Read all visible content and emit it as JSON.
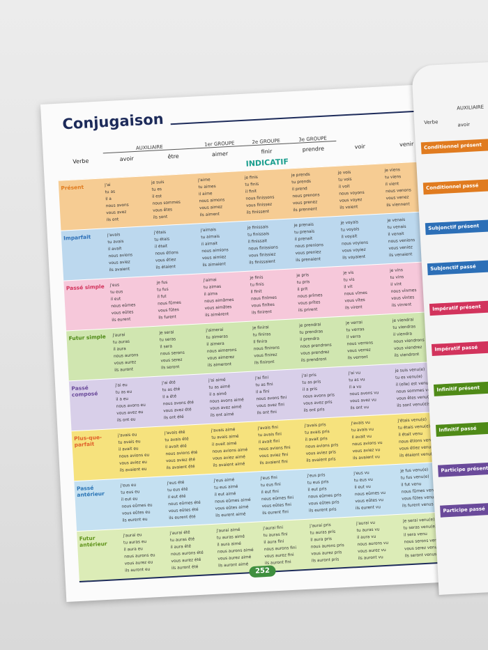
{
  "header": {
    "title": "Conjugaison",
    "groups": [
      "AUXILIAIRE",
      "1er GROUPE",
      "2e GROUPE",
      "3e GROUPE"
    ],
    "verb_label": "Verbe",
    "verbs": [
      "avoir",
      "être",
      "aimer",
      "finir",
      "prendre",
      "voir",
      "venir"
    ],
    "mood": "INDICATIF"
  },
  "tenses": [
    {
      "name": "Présent",
      "cells": [
        [
          "j'ai",
          "tu as",
          "il a",
          "nous avons",
          "vous avez",
          "ils ont"
        ],
        [
          "je suis",
          "tu es",
          "il est",
          "nous sommes",
          "vous êtes",
          "ils sont"
        ],
        [
          "j'aime",
          "tu aimes",
          "il aime",
          "nous aimons",
          "vous aimez",
          "ils aiment"
        ],
        [
          "je finis",
          "tu finis",
          "il finit",
          "nous finissons",
          "vous finissez",
          "ils finissent"
        ],
        [
          "je prends",
          "tu prends",
          "il prend",
          "nous prenons",
          "vous prenez",
          "ils prennent"
        ],
        [
          "je vois",
          "tu vois",
          "il voit",
          "nous voyons",
          "vous voyez",
          "ils voient"
        ],
        [
          "je viens",
          "tu viens",
          "il vient",
          "nous venons",
          "vous venez",
          "ils viennent"
        ]
      ]
    },
    {
      "name": "Imparfait",
      "cells": [
        [
          "j'avais",
          "tu avais",
          "il avait",
          "nous avions",
          "vous aviez",
          "ils avaient"
        ],
        [
          "j'étais",
          "tu étais",
          "il était",
          "nous étions",
          "vous étiez",
          "ils étaient"
        ],
        [
          "j'aimais",
          "tu aimais",
          "il aimait",
          "nous aimions",
          "vous aimiez",
          "ils aimaient"
        ],
        [
          "je finissais",
          "tu finissais",
          "il finissait",
          "nous finissions",
          "vous finissiez",
          "ils finissaient"
        ],
        [
          "je prenais",
          "tu prenais",
          "il prenait",
          "nous prenions",
          "vous preniez",
          "ils prenaient"
        ],
        [
          "je voyais",
          "tu voyais",
          "il voyait",
          "nous voyions",
          "vous voyiez",
          "ils voyaient"
        ],
        [
          "je venais",
          "tu venais",
          "il venait",
          "nous venions",
          "vous veniez",
          "ils venaient"
        ]
      ]
    },
    {
      "name": "Passé simple",
      "cells": [
        [
          "j'eus",
          "tu eus",
          "il eut",
          "nous eûmes",
          "vous eûtes",
          "ils eurent"
        ],
        [
          "je fus",
          "tu fus",
          "il fut",
          "nous fûmes",
          "vous fûtes",
          "ils furent"
        ],
        [
          "j'aimai",
          "tu aimas",
          "il aima",
          "nous aimâmes",
          "vous aimâtes",
          "ils aimèrent"
        ],
        [
          "je finis",
          "tu finis",
          "il finit",
          "nous finîmes",
          "vous finîtes",
          "ils finirent"
        ],
        [
          "je pris",
          "tu pris",
          "il prit",
          "nous prîmes",
          "vous prîtes",
          "ils prirent"
        ],
        [
          "je vis",
          "tu vis",
          "il vit",
          "nous vîmes",
          "vous vîtes",
          "ils virent"
        ],
        [
          "je vins",
          "tu vins",
          "il vint",
          "nous vînmes",
          "vous vîntes",
          "ils vinrent"
        ]
      ]
    },
    {
      "name": "Futur simple",
      "cells": [
        [
          "j'aurai",
          "tu auras",
          "il aura",
          "nous aurons",
          "vous aurez",
          "ils auront"
        ],
        [
          "je serai",
          "tu seras",
          "il sera",
          "nous serons",
          "vous serez",
          "ils seront"
        ],
        [
          "j'aimerai",
          "tu aimeras",
          "il aimera",
          "nous aimerons",
          "vous aimerez",
          "ils aimeront"
        ],
        [
          "je finirai",
          "tu finiras",
          "il finira",
          "nous finirons",
          "vous finirez",
          "ils finiront"
        ],
        [
          "je prendrai",
          "tu prendras",
          "il prendra",
          "nous prendrons",
          "vous prendrez",
          "ils prendront"
        ],
        [
          "je verrai",
          "tu verras",
          "il verra",
          "nous verrons",
          "vous verrez",
          "ils verront"
        ],
        [
          "je viendrai",
          "tu viendras",
          "il viendra",
          "nous viendrons",
          "vous viendrez",
          "ils viendront"
        ]
      ]
    },
    {
      "name": "Passé composé",
      "cells": [
        [
          "j'ai eu",
          "tu as eu",
          "il a eu",
          "nous avons eu",
          "vous avez eu",
          "ils ont eu"
        ],
        [
          "j'ai été",
          "tu as été",
          "il a été",
          "nous avons été",
          "vous avez été",
          "ils ont été"
        ],
        [
          "j'ai aimé",
          "tu as aimé",
          "il a aimé",
          "nous avons aimé",
          "vous avez aimé",
          "ils ont aimé"
        ],
        [
          "j'ai fini",
          "tu as fini",
          "il a fini",
          "nous avons fini",
          "vous avez fini",
          "ils ont fini"
        ],
        [
          "j'ai pris",
          "tu as pris",
          "il a pris",
          "nous avons pris",
          "vous avez pris",
          "ils ont pris"
        ],
        [
          "j'ai vu",
          "tu as vu",
          "il a vu",
          "nous avons vu",
          "vous avez vu",
          "ils ont vu"
        ],
        [
          "je suis venu(e)",
          "tu es venu(e)",
          "il (elle) est venu(e)",
          "nous sommes venu(e)s",
          "vous êtes venu(e)s",
          "ils sont venu(e)s"
        ]
      ]
    },
    {
      "name": "Plus-que-parfait",
      "cells": [
        [
          "j'avais eu",
          "tu avais eu",
          "il avait eu",
          "nous avions eu",
          "vous aviez eu",
          "ils avaient eu"
        ],
        [
          "j'avais été",
          "tu avais été",
          "il avait été",
          "nous avions été",
          "vous aviez été",
          "ils avaient été"
        ],
        [
          "j'avais aimé",
          "tu avais aimé",
          "il avait aimé",
          "nous avions aimé",
          "vous aviez aimé",
          "ils avaient aimé"
        ],
        [
          "j'avais fini",
          "tu avais fini",
          "il avait fini",
          "nous avions fini",
          "vous aviez fini",
          "ils avaient fini"
        ],
        [
          "j'avais pris",
          "tu avais pris",
          "il avait pris",
          "nous avions pris",
          "vous aviez pris",
          "ils avaient pris"
        ],
        [
          "j'avais vu",
          "tu avais vu",
          "il avait vu",
          "nous avions vu",
          "vous aviez vu",
          "ils avaient vu"
        ],
        [
          "j'étais venu(e)",
          "tu étais venu(e)",
          "il était venu",
          "nous étions venu(e)s",
          "vous étiez venu(e)s",
          "ils étaient venu(e)s"
        ]
      ]
    },
    {
      "name": "Passé antérieur",
      "cells": [
        [
          "j'eus eu",
          "tu eus eu",
          "il eut eu",
          "nous eûmes eu",
          "vous eûtes eu",
          "ils eurent eu"
        ],
        [
          "j'eus été",
          "tu eus été",
          "il eut été",
          "nous eûmes été",
          "vous eûtes été",
          "ils eurent été"
        ],
        [
          "j'eus aimé",
          "tu eus aimé",
          "il eut aimé",
          "nous eûmes aimé",
          "vous eûtes aimé",
          "ils eurent aimé"
        ],
        [
          "j'eus fini",
          "tu eus fini",
          "il eut fini",
          "nous eûmes fini",
          "vous eûtes fini",
          "ils eurent fini"
        ],
        [
          "j'eus pris",
          "tu eus pris",
          "il eut pris",
          "nous eûmes pris",
          "vous eûtes pris",
          "ils eurent pris"
        ],
        [
          "j'eus vu",
          "tu eus vu",
          "il eut vu",
          "nous eûmes vu",
          "vous eûtes vu",
          "ils eurent vu"
        ],
        [
          "je fus venu(e)",
          "tu fus venu(e)",
          "il fut venu",
          "nous fûmes venu(e)s",
          "vous fûtes venu(e)s",
          "ils furent venus"
        ]
      ]
    },
    {
      "name": "Futur antérieur",
      "cells": [
        [
          "j'aurai eu",
          "tu auras eu",
          "il aura eu",
          "nous aurons eu",
          "vous aurez eu",
          "ils auront eu"
        ],
        [
          "j'aurai été",
          "tu auras été",
          "il aura été",
          "nous aurons été",
          "vous aurez été",
          "ils auront été"
        ],
        [
          "j'aurai aimé",
          "tu auras aimé",
          "il aura aimé",
          "nous aurons aimé",
          "vous aurez aimé",
          "ils auront aimé"
        ],
        [
          "j'aurai fini",
          "tu auras fini",
          "il aura fini",
          "nous aurons fini",
          "vous aurez fini",
          "ils auront fini"
        ],
        [
          "j'aurai pris",
          "tu auras pris",
          "il aura pris",
          "nous aurons pris",
          "vous aurez pris",
          "ils auront pris"
        ],
        [
          "j'aurai vu",
          "tu auras vu",
          "il aura vu",
          "nous aurons vu",
          "vous aurez vu",
          "ils auront vu"
        ],
        [
          "je serai venu(e)",
          "tu seras venu(e)",
          "il sera venu",
          "nous serons venu(e)s",
          "vous serez venu(e)s",
          "ils seront venus"
        ]
      ]
    }
  ],
  "page_number": "252",
  "side_page": {
    "header": [
      "AUXILIAIRE",
      "Verbe",
      "avoir"
    ],
    "tabs": [
      "Conditionnel présent",
      "Conditionnel passé",
      "Subjonctif présent",
      "Subjonctif passé",
      "Impératif présent",
      "Impératif passé",
      "Infinitif présent",
      "Infinitif passé",
      "Participe présent",
      "Participe passé"
    ]
  }
}
